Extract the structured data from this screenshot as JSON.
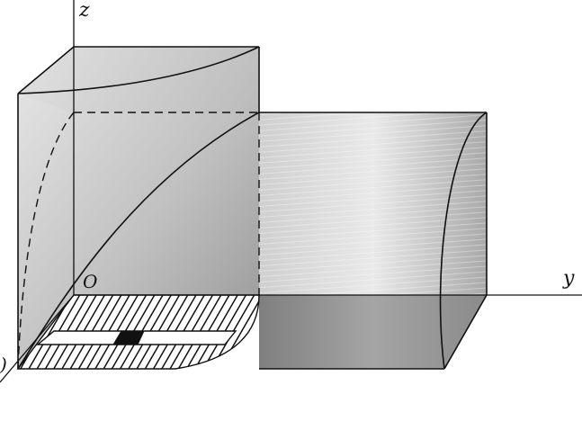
{
  "labels": {
    "z_axis": "z",
    "y_axis": "y",
    "origin": "O",
    "left_edge": ")"
  },
  "colors": {
    "line": "#111111",
    "face_light": "#dcdcdc",
    "face_mid": "#b7b7b7",
    "face_dark": "#8c8c8c",
    "strip": "#ffffff",
    "strip_square": "#111111"
  }
}
